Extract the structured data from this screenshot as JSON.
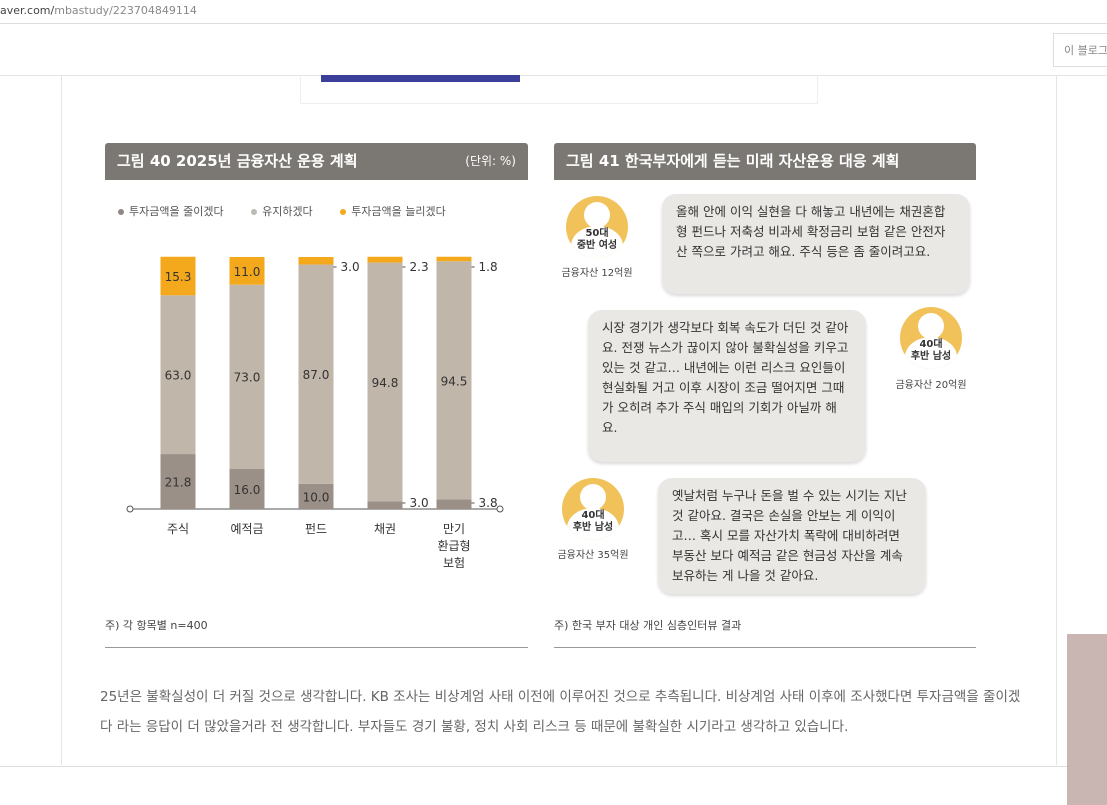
{
  "browser": {
    "url_host": "aver.com/",
    "url_path": "mbastudy/223704849114"
  },
  "blog": {
    "search_placeholder": "이 블로그"
  },
  "figure40": {
    "title": "그림 40  2025년 금융자산 운용 계획",
    "unit": "(단위: %)",
    "note": "주) 각 항목별 n=400"
  },
  "figure41": {
    "title": "그림 41  한국부자에게 듣는 미래 자산운용 대응 계획",
    "note": "주) 한국 부자 대상 개인 심층인터뷰 결과",
    "interviews": [
      {
        "age": "50대",
        "desc": "중반 여성",
        "asset": "금융자산 12억원",
        "quote": "올해 안에 이익 실현을 다 해놓고 내년에는 채권혼합형 펀드나 저축성 비과세 확정금리 보험 같은 안전자산 쪽으로 가려고 해요. 주식 등은 좀 줄이려고요."
      },
      {
        "age": "40대",
        "desc": "후반 남성",
        "asset": "금융자산 20억원",
        "quote": "시장 경기가 생각보다 회복 속도가 더딘 것 같아요. 전쟁 뉴스가 끊이지 않아 불확실성을 키우고 있는 것 같고… 내년에는 이런 리스크 요인들이 현실화될 거고 이후 시장이 조금 떨어지면 그때가 오히려 추가 주식 매입의 기회가 아닐까 해요."
      },
      {
        "age": "40대",
        "desc": "후반 남성",
        "asset": "금융자산 35억원",
        "quote": "옛날처럼 누구나 돈을 벌 수 있는 시기는 지난 것 같아요. 결국은 손실을 안보는 게 이익이고… 혹시 모를 자산가치 폭락에 대비하려면 부동산 보다 예적금 같은 현금성 자산을 계속 보유하는 게 나을 것 같아요."
      }
    ]
  },
  "chart_data": {
    "type": "bar",
    "stacked": true,
    "title": "그림 40  2025년 금융자산 운용 계획",
    "unit": "(단위: %)",
    "categories": [
      "주식",
      "예적금",
      "펀드",
      "채권",
      "만기\n환급형\n보험"
    ],
    "series": [
      {
        "name": "투자금액을 줄이겠다",
        "color": "#9b9087",
        "values": [
          21.8,
          16.0,
          10.0,
          3.0,
          3.8
        ]
      },
      {
        "name": "유지하겠다",
        "color": "#c0b6aa",
        "values": [
          63.0,
          73.0,
          87.0,
          94.8,
          94.5
        ]
      },
      {
        "name": "투자금액을 늘리겠다",
        "color": "#f4a91d",
        "values": [
          15.3,
          11.0,
          3.0,
          2.3,
          1.8
        ]
      }
    ],
    "ylim": [
      0,
      100
    ],
    "legend": "top"
  },
  "paragraph": "25년은 불확실성이 더 커질 것으로 생각합니다. KB 조사는 비상계엄 사태 이전에 이루어진 것으로 추측됩니다. 비상계엄 사태 이후에 조사했다면 투자금액을 줄이겠다 라는 응답이 더 많았을거라 전 생각합니다. 부자들도 경기 불황, 정치 사회 리스크 등 때문에 불확실한 시기라고 생각하고 있습니다."
}
